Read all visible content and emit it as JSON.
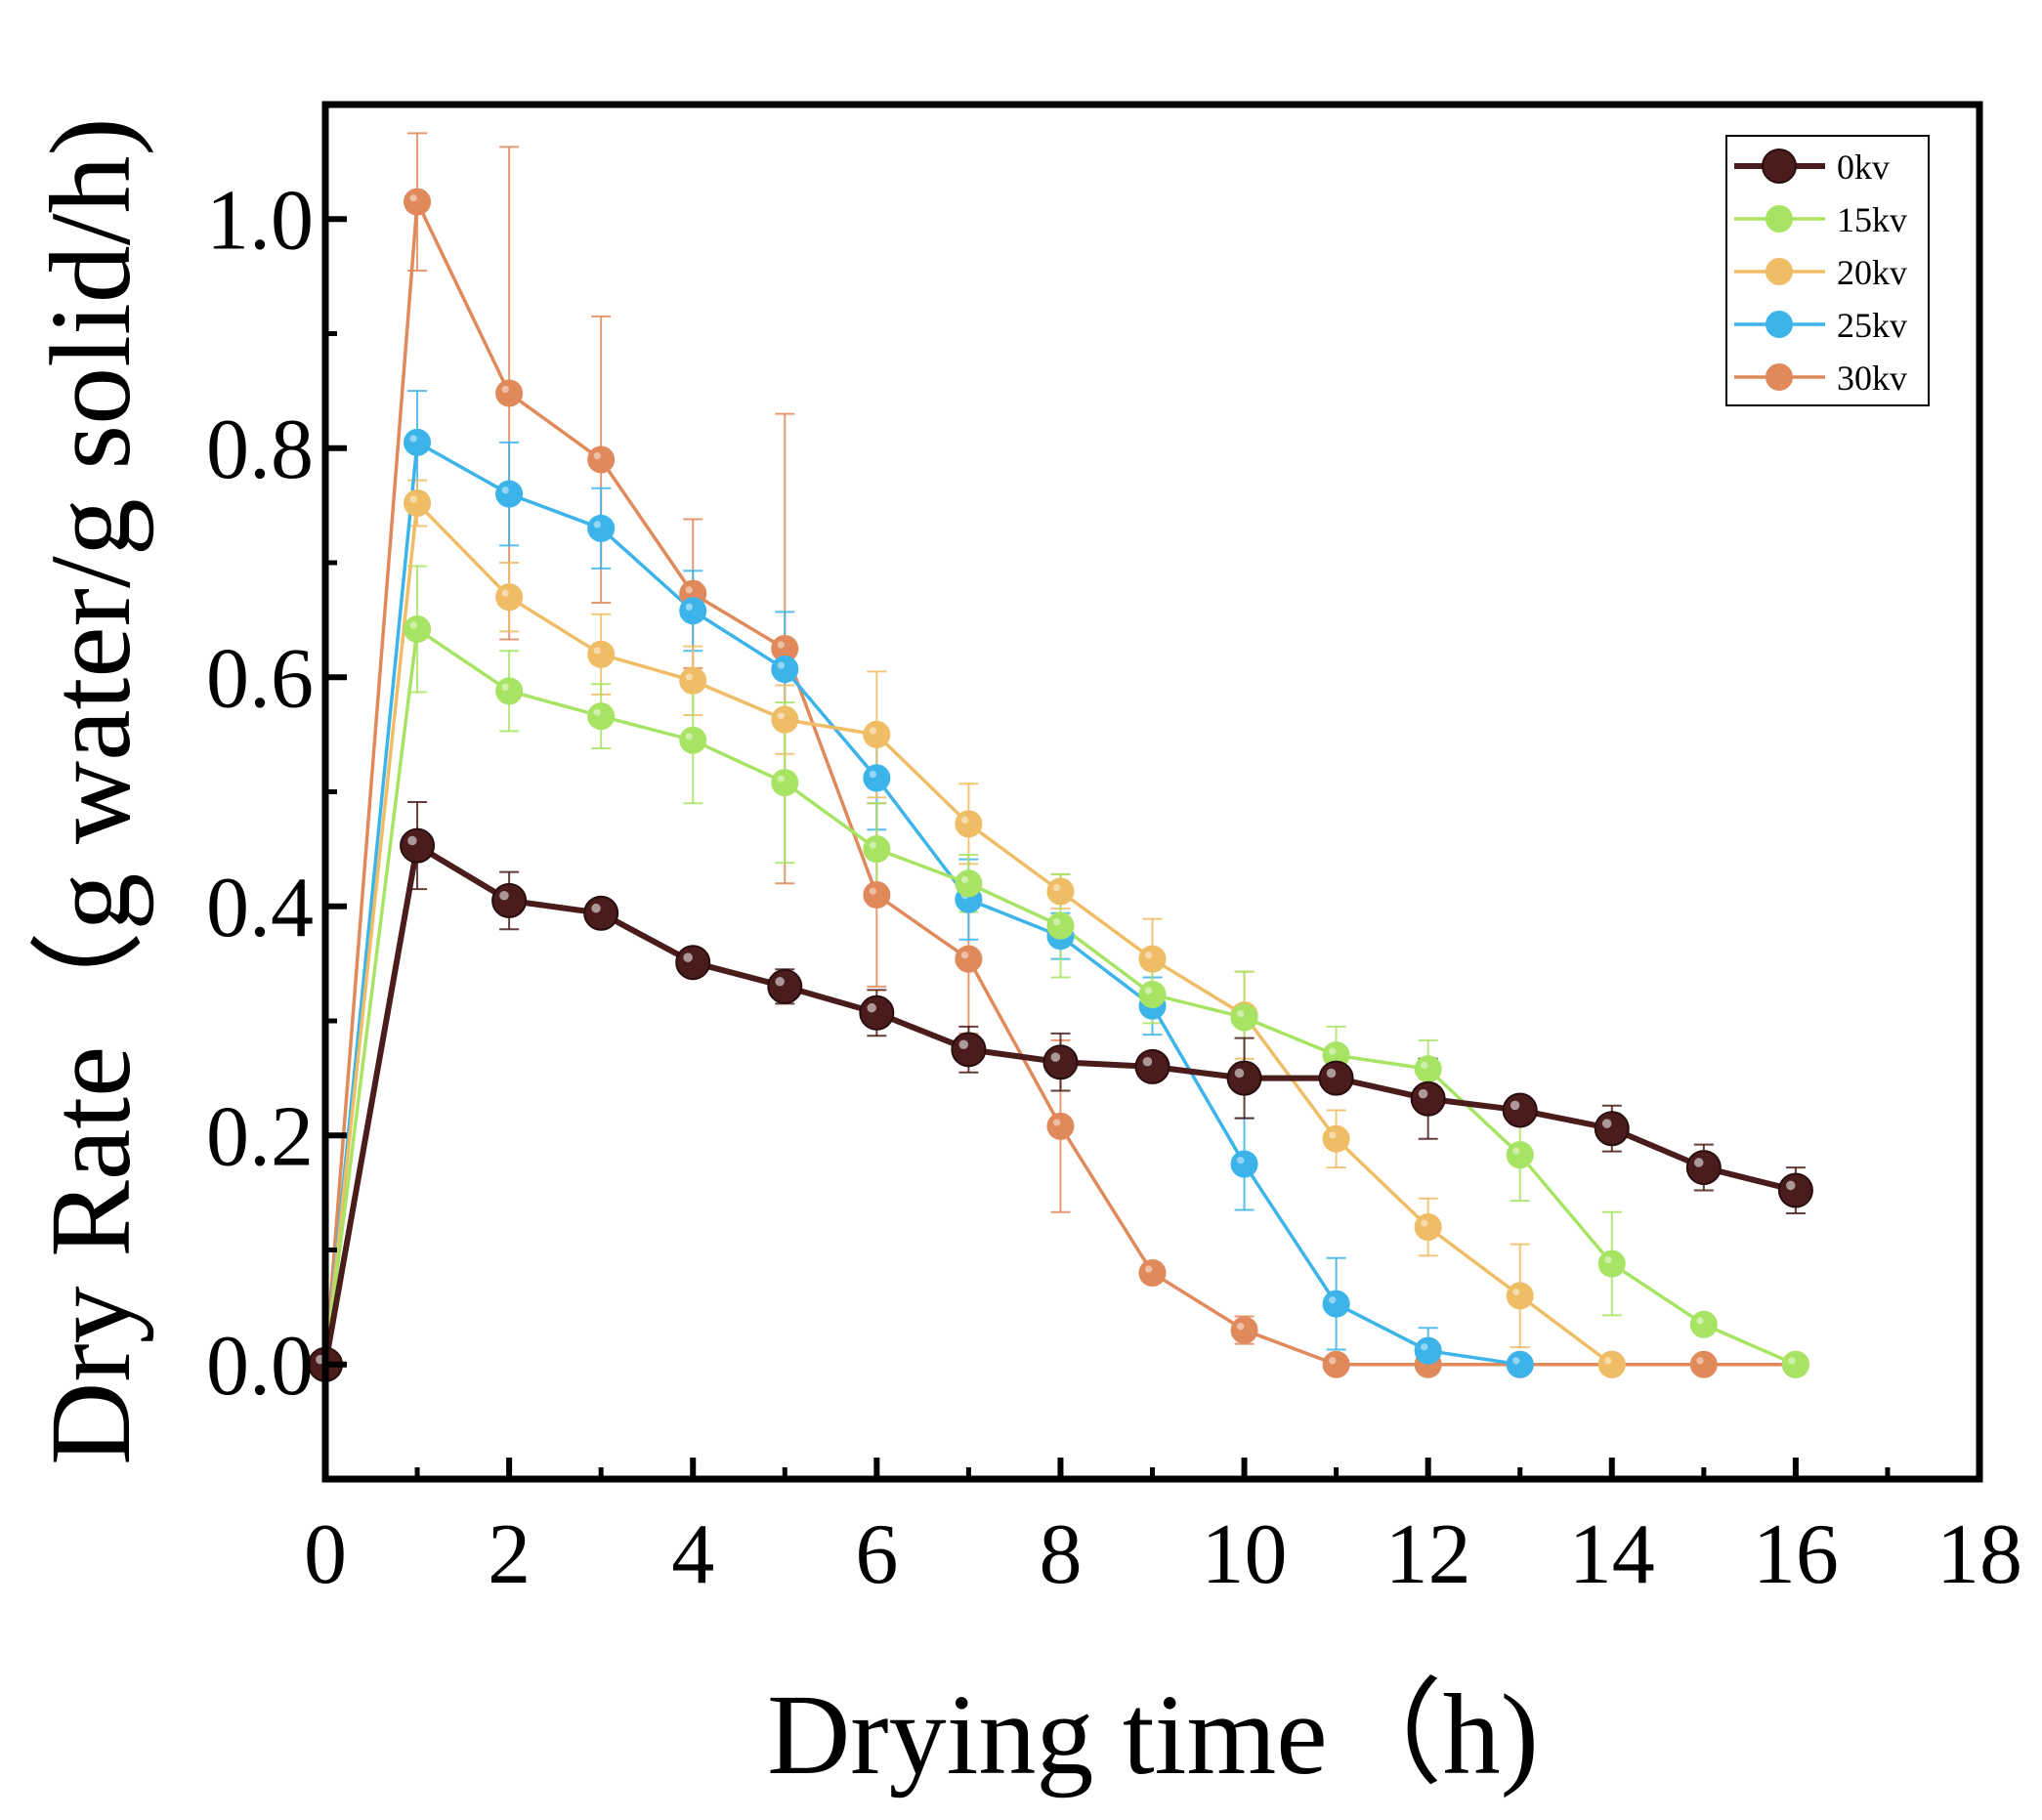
{
  "chart_data": {
    "type": "line",
    "title": "",
    "xlabel": "Drying time（h)",
    "ylabel": "Dry Rate（g water/g solid/h)",
    "xlim": [
      0,
      18
    ],
    "ylim": [
      -0.1,
      1.1
    ],
    "xticks": [
      "0",
      "2",
      "4",
      "6",
      "8",
      "10",
      "12",
      "14",
      "16",
      "18"
    ],
    "yticks": [
      "0.0",
      "0.2",
      "0.4",
      "0.6",
      "0.8",
      "1.0"
    ],
    "grid": false,
    "legend_position": "top-right",
    "series": [
      {
        "name": "30kv",
        "color": "#e08a5c",
        "x": [
          0,
          1,
          2,
          3,
          4,
          5,
          6,
          7,
          8,
          9,
          10,
          11,
          12,
          13,
          14,
          15,
          16
        ],
        "values": [
          0.0,
          1.015,
          0.848,
          0.79,
          0.673,
          0.625,
          0.41,
          0.354,
          0.208,
          0.08,
          0.03,
          0.0,
          0.0,
          0.0,
          0.0,
          0.0,
          0.0
        ],
        "errors": [
          0,
          0.06,
          0.215,
          0.125,
          0.065,
          0.205,
          0.08,
          0.065,
          0.075,
          0,
          0.012,
          0,
          0,
          0,
          0,
          0,
          0
        ]
      },
      {
        "name": "25kv",
        "color": "#3cb4ea",
        "x": [
          0,
          1,
          2,
          3,
          4,
          5,
          6,
          7,
          8,
          9,
          10,
          11,
          12,
          13
        ],
        "values": [
          0.0,
          0.805,
          0.76,
          0.73,
          0.658,
          0.607,
          0.512,
          0.406,
          0.374,
          0.313,
          0.175,
          0.053,
          0.012,
          0.0
        ],
        "errors": [
          0,
          0.045,
          0.045,
          0.035,
          0.035,
          0.05,
          0.045,
          0.035,
          0.02,
          0.025,
          0.04,
          0.04,
          0.02,
          0
        ]
      },
      {
        "name": "20kv",
        "color": "#efbd66",
        "x": [
          0,
          1,
          2,
          3,
          4,
          5,
          6,
          7,
          8,
          9,
          10,
          11,
          12,
          13,
          14
        ],
        "values": [
          0.0,
          0.752,
          0.67,
          0.62,
          0.597,
          0.563,
          0.55,
          0.472,
          0.413,
          0.354,
          0.305,
          0.197,
          0.12,
          0.06,
          0.0
        ],
        "errors": [
          0,
          0.02,
          0.03,
          0.035,
          0.03,
          0.03,
          0.055,
          0.035,
          0.015,
          0.035,
          0.038,
          0.025,
          0.025,
          0.045,
          0
        ]
      },
      {
        "name": "15kv",
        "color": "#a8e463",
        "x": [
          0,
          1,
          2,
          3,
          4,
          5,
          6,
          7,
          8,
          9,
          10,
          11,
          12,
          13,
          14,
          15,
          16
        ],
        "values": [
          0.0,
          0.642,
          0.588,
          0.566,
          0.545,
          0.508,
          0.45,
          0.42,
          0.383,
          0.323,
          0.303,
          0.27,
          0.258,
          0.183,
          0.088,
          0.035,
          0.0
        ],
        "errors": [
          0,
          0.055,
          0.035,
          0.028,
          0.055,
          0.07,
          0.04,
          0.025,
          0.045,
          0.025,
          0.04,
          0.025,
          0.025,
          0.04,
          0.045,
          0,
          0
        ]
      },
      {
        "name": "0kv",
        "color": "#4a1c1c",
        "x": [
          0,
          1,
          2,
          3,
          4,
          5,
          6,
          7,
          8,
          9,
          10,
          11,
          12,
          13,
          14,
          15,
          16
        ],
        "values": [
          0.0,
          0.453,
          0.405,
          0.394,
          0.351,
          0.33,
          0.307,
          0.275,
          0.264,
          0.26,
          0.25,
          0.25,
          0.232,
          0.222,
          0.206,
          0.172,
          0.152
        ],
        "errors": [
          0,
          0.038,
          0.025,
          0.012,
          0.012,
          0.015,
          0.02,
          0.02,
          0.025,
          0.012,
          0.035,
          0.012,
          0.035,
          0.012,
          0.02,
          0.02,
          0.02
        ]
      }
    ],
    "legend_order": [
      "0kv",
      "15kv",
      "20kv",
      "25kv",
      "30kv"
    ]
  }
}
